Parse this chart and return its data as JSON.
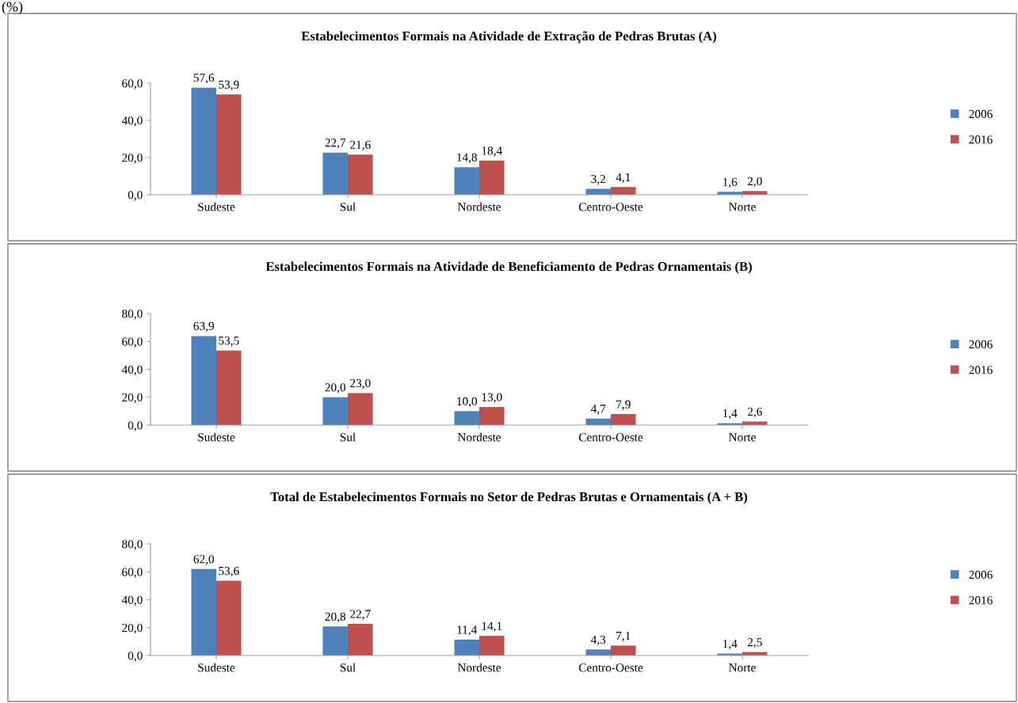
{
  "chart_data": [
    {
      "type": "bar",
      "title": "Estabelecimentos Formais na Atividade de Extração de Pedras Brutas (A)",
      "annotations": [
        "(%)"
      ],
      "categories": [
        "Sudeste",
        "Sul",
        "Nordeste",
        "Centro-Oeste",
        "Norte"
      ],
      "ylim": [
        0,
        60
      ],
      "yticks": [
        {
          "value": 0,
          "label": "0,0"
        },
        {
          "value": 20,
          "label": "20,0"
        },
        {
          "value": 40,
          "label": "40,0"
        },
        {
          "value": 60,
          "label": "60,0"
        }
      ],
      "legend": "right",
      "grid": false,
      "series": [
        {
          "name": "2006",
          "color": "#4f81bd",
          "values": [
            57.6,
            22.7,
            14.8,
            3.2,
            1.6
          ],
          "value_labels": [
            "57,6",
            "22,7",
            "14,8",
            "3,2",
            "1,6"
          ]
        },
        {
          "name": "2016",
          "color": "#c0504d",
          "values": [
            53.9,
            21.6,
            18.4,
            4.1,
            2.0
          ],
          "value_labels": [
            "53,9",
            "21,6",
            "18,4",
            "4,1",
            "2,0"
          ]
        }
      ]
    },
    {
      "type": "bar",
      "title": "Estabelecimentos Formais na Atividade de Beneficiamento de Pedras Ornamentais (B)",
      "categories": [
        "Sudeste",
        "Sul",
        "Nordeste",
        "Centro-Oeste",
        "Norte"
      ],
      "ylim": [
        0,
        80
      ],
      "yticks": [
        {
          "value": 0,
          "label": "0,0"
        },
        {
          "value": 20,
          "label": "20,0"
        },
        {
          "value": 40,
          "label": "40,0"
        },
        {
          "value": 60,
          "label": "60,0"
        },
        {
          "value": 80,
          "label": "80,0"
        }
      ],
      "legend": "right",
      "grid": false,
      "series": [
        {
          "name": "2006",
          "color": "#4f81bd",
          "values": [
            63.9,
            20.0,
            10.0,
            4.7,
            1.4
          ],
          "value_labels": [
            "63,9",
            "20,0",
            "10,0",
            "4,7",
            "1,4"
          ]
        },
        {
          "name": "2016",
          "color": "#c0504d",
          "values": [
            53.5,
            23.0,
            13.0,
            7.9,
            2.6
          ],
          "value_labels": [
            "53,5",
            "23,0",
            "13,0",
            "7,9",
            "2,6"
          ]
        }
      ]
    },
    {
      "type": "bar",
      "title": "Total de Estabelecimentos Formais no Setor de Pedras Brutas e Ornamentais (A + B)",
      "categories": [
        "Sudeste",
        "Sul",
        "Nordeste",
        "Centro-Oeste",
        "Norte"
      ],
      "ylim": [
        0,
        80
      ],
      "yticks": [
        {
          "value": 0,
          "label": "0,0"
        },
        {
          "value": 20,
          "label": "20,0"
        },
        {
          "value": 40,
          "label": "40,0"
        },
        {
          "value": 60,
          "label": "60,0"
        },
        {
          "value": 80,
          "label": "80,0"
        }
      ],
      "legend": "right",
      "grid": false,
      "series": [
        {
          "name": "2006",
          "color": "#4f81bd",
          "values": [
            62.0,
            20.8,
            11.4,
            4.3,
            1.4
          ],
          "value_labels": [
            "62,0",
            "20,8",
            "11,4",
            "4,3",
            "1,4"
          ]
        },
        {
          "name": "2016",
          "color": "#c0504d",
          "values": [
            53.6,
            22.7,
            14.1,
            7.1,
            2.5
          ],
          "value_labels": [
            "53,6",
            "22,7",
            "14,1",
            "7,1",
            "2,5"
          ]
        }
      ]
    }
  ]
}
